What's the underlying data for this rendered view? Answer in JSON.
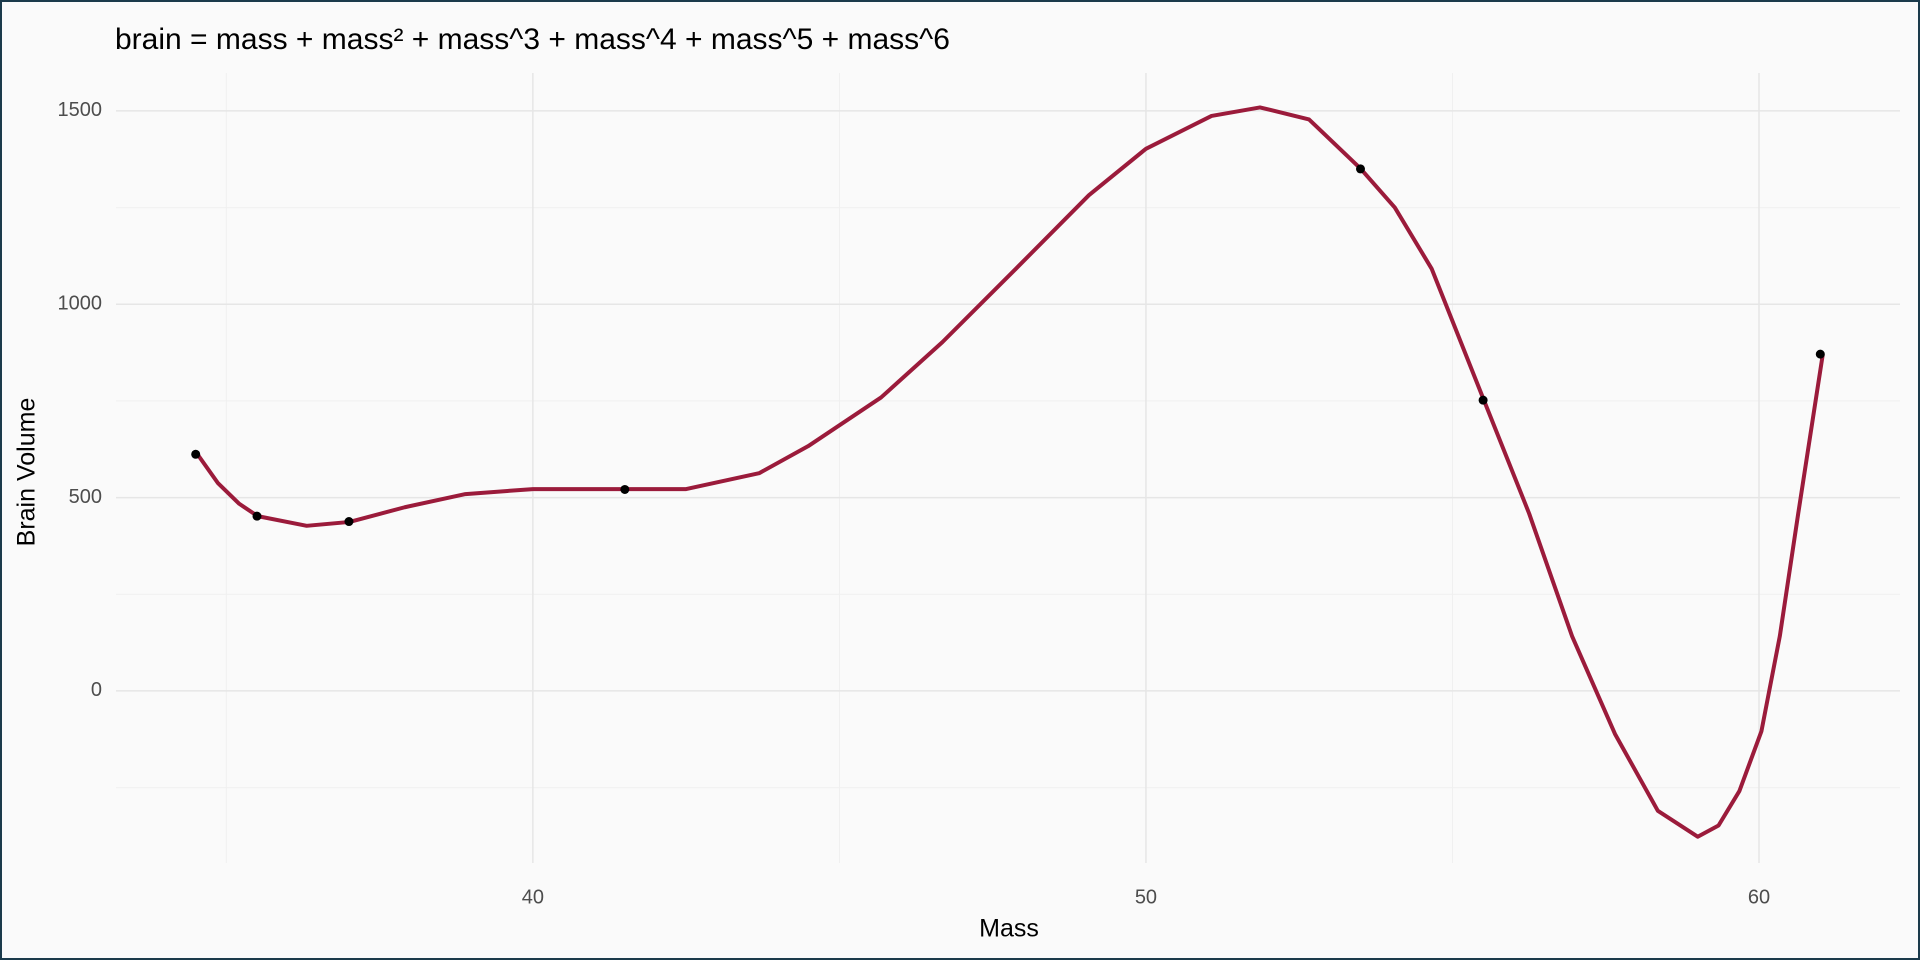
{
  "chart_data": {
    "type": "scatter",
    "title": "brain = mass + mass² + mass^3 + mass^4 + mass^5 + mass^6",
    "x_label": "Mass",
    "y_label": "Brain Volume",
    "xlim": [
      33.2,
      62.3
    ],
    "ylim": [
      -445,
      1598
    ],
    "xticks": [
      40,
      50,
      60
    ],
    "yticks": [
      0,
      500,
      1000,
      1500
    ],
    "x_minor_ticks": [
      35,
      45,
      55
    ],
    "y_minor_ticks": [
      -250,
      250,
      750,
      1250
    ],
    "grid": true,
    "points": {
      "color": "#000000",
      "x": [
        37.0,
        35.5,
        34.5,
        41.5,
        55.5,
        61.0,
        53.5
      ],
      "values": [
        438,
        452,
        612,
        521,
        752,
        871,
        1350
      ]
    },
    "curve": {
      "color": "#9b1b3b",
      "x": [
        34.52,
        34.86,
        35.21,
        35.51,
        36.31,
        37.01,
        37.91,
        38.9,
        40,
        41.5,
        42.5,
        43.69,
        44.49,
        45.68,
        46.68,
        47.88,
        49.07,
        50,
        51.07,
        51.86,
        52.66,
        53.5,
        54.06,
        54.66,
        55.51,
        56.25,
        56.95,
        57.65,
        58.35,
        59.0,
        59.34,
        59.68,
        60.04,
        60.34,
        60.64,
        61.04
      ],
      "values": [
        614,
        538,
        484,
        452,
        427,
        437,
        475,
        509,
        522,
        522,
        522,
        563,
        633,
        759,
        902,
        1092,
        1282,
        1402,
        1487,
        1509,
        1478,
        1351,
        1250,
        1092,
        753,
        459,
        142,
        -111,
        -310,
        -377,
        -348,
        -259,
        -104,
        142,
        459,
        870
      ]
    }
  }
}
